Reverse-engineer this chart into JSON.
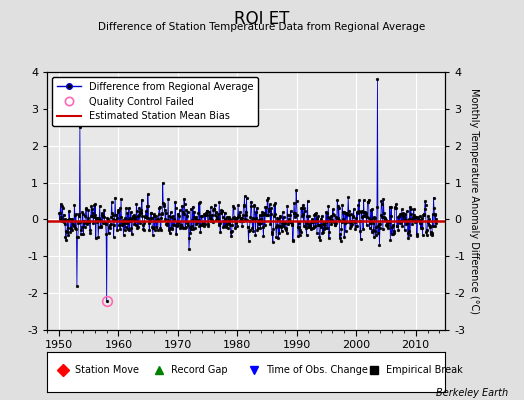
{
  "title": "ROI ET",
  "subtitle": "Difference of Station Temperature Data from Regional Average",
  "ylabel": "Monthly Temperature Anomaly Difference (°C)",
  "xlabel_ticks": [
    1950,
    1960,
    1970,
    1980,
    1990,
    2000,
    2010
  ],
  "ylim": [
    -3,
    4
  ],
  "xlim": [
    1948,
    2015
  ],
  "yticks": [
    -3,
    -2,
    -1,
    0,
    1,
    2,
    3,
    4
  ],
  "bias_value": -0.05,
  "bg_color": "#e0e0e0",
  "plot_bg_color": "#e8e8e8",
  "line_color": "#0000cc",
  "bias_line_color": "#cc0000",
  "qc_fail_color": "#ff69b4",
  "seed": 42
}
